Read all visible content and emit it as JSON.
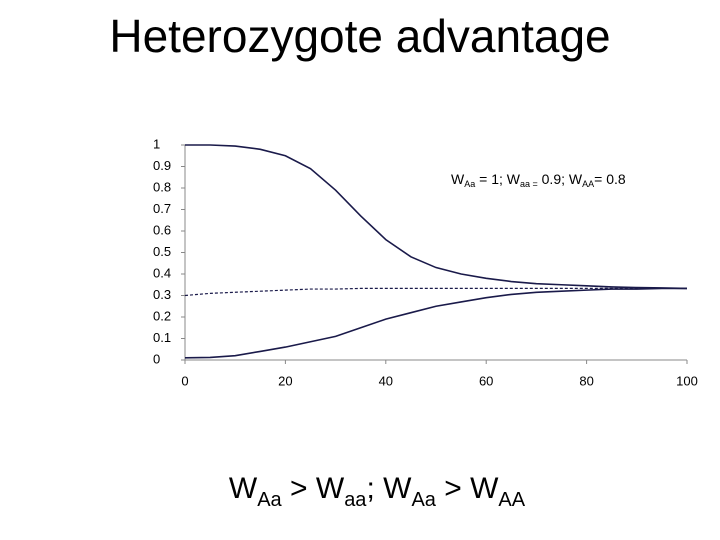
{
  "title": "Heterozygote advantage",
  "caption": [
    "W",
    "Aa",
    " > W",
    "aa",
    "; W",
    "Aa",
    " > W",
    "AA"
  ],
  "chart_data": {
    "type": "line",
    "annotation": [
      "W",
      "Aa",
      " = 1; W",
      "aa =",
      " 0.9; W",
      "AA",
      "= 0.8"
    ],
    "x": [
      0,
      5,
      10,
      15,
      20,
      25,
      30,
      35,
      40,
      45,
      50,
      55,
      60,
      65,
      70,
      75,
      80,
      85,
      90,
      95,
      100
    ],
    "series": [
      {
        "color": "#1a1a4a",
        "dash": false,
        "values": [
          1.0,
          1.0,
          0.995,
          0.98,
          0.95,
          0.89,
          0.79,
          0.67,
          0.56,
          0.48,
          0.43,
          0.4,
          0.38,
          0.365,
          0.355,
          0.35,
          0.345,
          0.34,
          0.337,
          0.335,
          0.333
        ]
      },
      {
        "color": "#1a1a4a",
        "dash": true,
        "values": [
          0.3,
          0.31,
          0.315,
          0.32,
          0.325,
          0.33,
          0.33,
          0.333,
          0.333,
          0.333,
          0.333,
          0.333,
          0.333,
          0.333,
          0.333,
          0.333,
          0.333,
          0.333,
          0.333,
          0.333,
          0.333
        ]
      },
      {
        "color": "#1a1a4a",
        "dash": false,
        "values": [
          0.01,
          0.012,
          0.02,
          0.04,
          0.06,
          0.085,
          0.11,
          0.15,
          0.19,
          0.22,
          0.25,
          0.27,
          0.29,
          0.305,
          0.315,
          0.32,
          0.325,
          0.33,
          0.33,
          0.333,
          0.333
        ]
      }
    ],
    "xlim": [
      0,
      100
    ],
    "xticks": [
      0,
      20,
      40,
      60,
      80,
      100
    ],
    "ylim": [
      0,
      1
    ],
    "yticks": [
      0,
      0.1,
      0.2,
      0.3,
      0.4,
      0.5,
      0.6,
      0.7,
      0.8,
      0.9,
      1
    ],
    "grid": false
  }
}
